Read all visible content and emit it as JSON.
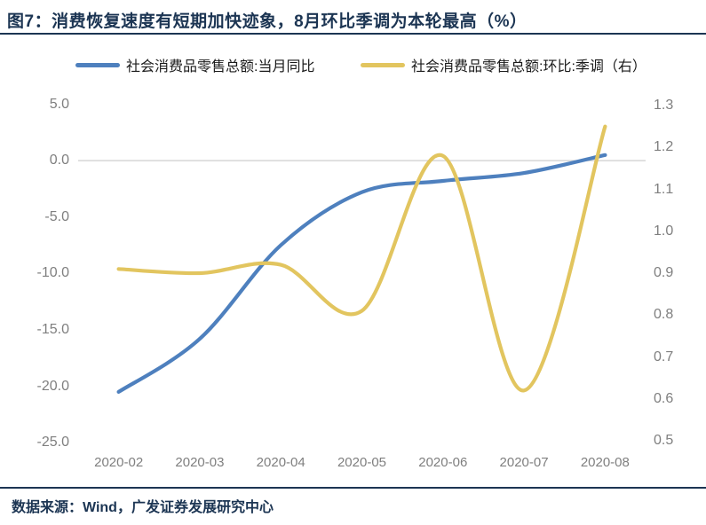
{
  "figure": {
    "title": "图7：消费恢复速度有短期加快迹象，8月环比季调为本轮最高（%）",
    "source": "数据来源：Wind，广发证券发展研究中心"
  },
  "colors": {
    "navy": "#1c3553",
    "blue_series": "#4e80be",
    "yellow_series": "#e2c55f",
    "tick_gray": "#7f7f7f",
    "gridline": "#d6d6d6"
  },
  "chart_data": {
    "type": "line",
    "smooth": true,
    "title": "图7：消费恢复速度有短期加快迹象，8月环比季调为本轮最高（%）",
    "categories": [
      "2020-02",
      "2020-03",
      "2020-04",
      "2020-05",
      "2020-06",
      "2020-07",
      "2020-08"
    ],
    "series": [
      {
        "name": "社会消费品零售总额:当月同比",
        "axis": "left",
        "color": "#4e80be",
        "values": [
          -20.5,
          -15.8,
          -7.5,
          -2.8,
          -1.8,
          -1.1,
          0.5
        ]
      },
      {
        "name": "社会消费品零售总额:环比:季调（右）",
        "axis": "right",
        "color": "#e2c55f",
        "values": [
          0.91,
          0.9,
          0.92,
          0.81,
          1.18,
          0.62,
          1.25
        ]
      }
    ],
    "left_axis": {
      "ticks": [
        "5.0",
        "0.0",
        "-5.0",
        "-10.0",
        "-15.0",
        "-20.0",
        "-25.0"
      ],
      "range": [
        5.0,
        -25.0
      ]
    },
    "right_axis": {
      "ticks": [
        "1.3",
        "1.2",
        "1.1",
        "1.0",
        "0.9",
        "0.8",
        "0.7",
        "0.6",
        "0.5"
      ],
      "range": [
        1.3,
        0.5
      ]
    },
    "grid": "horizontal-zero-line-only",
    "legend_position": "top"
  }
}
